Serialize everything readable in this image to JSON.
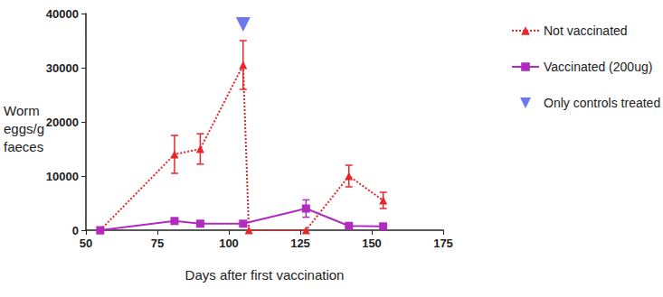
{
  "chart_data": {
    "type": "line",
    "x_label": "Days after first vaccination",
    "y_label": "Worm eggs/g faeces",
    "xlim": [
      50,
      175
    ],
    "xticks": [
      50,
      75,
      100,
      125,
      150,
      175
    ],
    "ylim": [
      0,
      40000
    ],
    "yticks": [
      0,
      10000,
      20000,
      30000,
      40000
    ],
    "grid": false,
    "legend": "right",
    "series": [
      {
        "name": "Not vaccinated",
        "color": "#e8262a",
        "marker": "triangle",
        "line_style": "dotted",
        "x": [
          55,
          81,
          90,
          105,
          107,
          127,
          142,
          154
        ],
        "values": [
          0,
          14000,
          15000,
          30500,
          0,
          0,
          10000,
          5500
        ],
        "errors": [
          0,
          3500,
          2800,
          4500,
          0,
          0,
          2000,
          1500
        ]
      },
      {
        "name": "Vaccinated (200ug)",
        "color": "#b02cc0",
        "marker": "square",
        "line_style": "solid",
        "x": [
          55,
          81,
          90,
          105,
          127,
          142,
          154
        ],
        "values": [
          0,
          1700,
          1200,
          1200,
          4000,
          800,
          700
        ],
        "errors": [
          0,
          300,
          250,
          250,
          1600,
          300,
          250
        ]
      },
      {
        "name": "Only controls treated",
        "type": "scatter",
        "color": "#4a55e8",
        "marker": "triangle-down",
        "x": [
          105
        ],
        "values": [
          38000
        ]
      }
    ]
  }
}
